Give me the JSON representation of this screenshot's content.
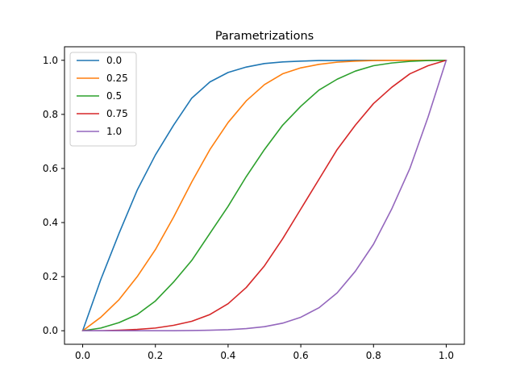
{
  "chart_data": {
    "type": "line",
    "title": "Parametrizations",
    "xlabel": "",
    "ylabel": "",
    "xlim": [
      -0.05,
      1.05
    ],
    "ylim": [
      -0.05,
      1.05
    ],
    "xticks": [
      0.0,
      0.2,
      0.4,
      0.6,
      0.8,
      1.0
    ],
    "xtick_labels": [
      "0.0",
      "0.2",
      "0.4",
      "0.6",
      "0.8",
      "1.0"
    ],
    "yticks": [
      0.0,
      0.2,
      0.4,
      0.6,
      0.8,
      1.0
    ],
    "ytick_labels": [
      "0.0",
      "0.2",
      "0.4",
      "0.6",
      "0.8",
      "1.0"
    ],
    "grid": false,
    "legend_position": "top-left",
    "x": [
      0.0,
      0.05,
      0.1,
      0.15,
      0.2,
      0.25,
      0.3,
      0.35,
      0.4,
      0.45,
      0.5,
      0.55,
      0.6,
      0.65,
      0.7,
      0.75,
      0.8,
      0.85,
      0.9,
      0.95,
      1.0
    ],
    "series": [
      {
        "name": "0.0",
        "color": "#1f77b4",
        "values": [
          0.0,
          0.19,
          0.36,
          0.52,
          0.65,
          0.76,
          0.86,
          0.92,
          0.955,
          0.975,
          0.988,
          0.994,
          0.997,
          0.999,
          0.999,
          1.0,
          1.0,
          1.0,
          1.0,
          1.0,
          1.0
        ]
      },
      {
        "name": "0.25",
        "color": "#ff7f0e",
        "values": [
          0.0,
          0.05,
          0.115,
          0.2,
          0.3,
          0.42,
          0.55,
          0.67,
          0.77,
          0.85,
          0.91,
          0.95,
          0.972,
          0.985,
          0.993,
          0.997,
          0.999,
          1.0,
          1.0,
          1.0,
          1.0
        ]
      },
      {
        "name": "0.5",
        "color": "#2ca02c",
        "values": [
          0.0,
          0.01,
          0.03,
          0.06,
          0.11,
          0.18,
          0.26,
          0.36,
          0.46,
          0.57,
          0.67,
          0.76,
          0.83,
          0.89,
          0.93,
          0.96,
          0.98,
          0.99,
          0.996,
          0.999,
          1.0
        ]
      },
      {
        "name": "0.75",
        "color": "#d62728",
        "values": [
          0.0,
          0.0,
          0.002,
          0.005,
          0.01,
          0.02,
          0.035,
          0.06,
          0.1,
          0.16,
          0.24,
          0.34,
          0.45,
          0.56,
          0.67,
          0.76,
          0.84,
          0.9,
          0.95,
          0.98,
          1.0
        ]
      },
      {
        "name": "1.0",
        "color": "#9467bd",
        "values": [
          0.0,
          0.0,
          0.0,
          0.0,
          0.0,
          0.0,
          0.001,
          0.002,
          0.004,
          0.008,
          0.015,
          0.028,
          0.05,
          0.085,
          0.14,
          0.22,
          0.32,
          0.45,
          0.6,
          0.79,
          1.0
        ]
      }
    ]
  }
}
